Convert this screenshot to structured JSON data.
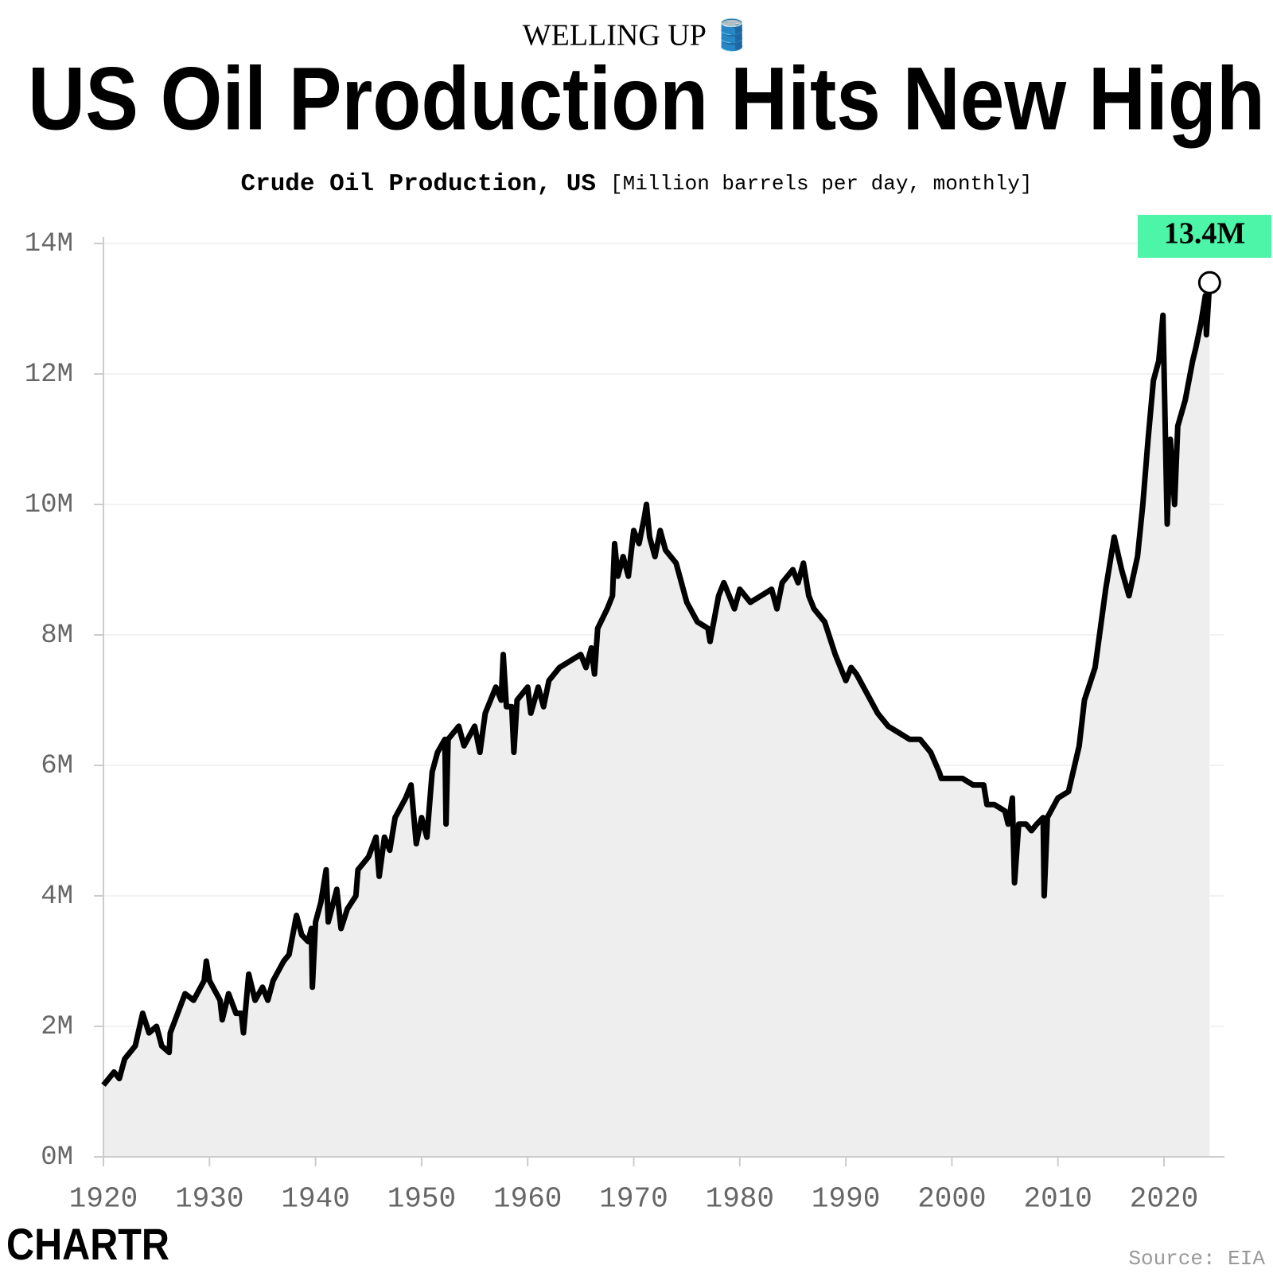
{
  "chart_data": {
    "type": "area",
    "kicker": "WELLING UP 🛢️",
    "title": "US Oil Production Hits New High",
    "subtitle": "Crude Oil Production, US",
    "unit_note": "[Million barrels per day, monthly]",
    "source": "Source: EIA",
    "brand": "CHARTR",
    "end_label": "13.4M",
    "color": "#000000",
    "fill": "#eeeeee",
    "label_color": "#4cf5a8",
    "x": [
      1920,
      1921,
      1921.5,
      1922,
      1923,
      1923.7,
      1924.3,
      1925,
      1925.5,
      1926.2,
      1926.3,
      1927,
      1927.7,
      1928.5,
      1929.5,
      1929.7,
      1930,
      1931,
      1931.2,
      1931.8,
      1932.5,
      1933,
      1933.2,
      1933.7,
      1934.3,
      1935,
      1935.5,
      1936,
      1937,
      1937.5,
      1938.2,
      1938.7,
      1939.3,
      1939.6,
      1939.7,
      1940,
      1940.5,
      1941,
      1941.2,
      1942,
      1942.4,
      1943,
      1943.8,
      1944,
      1945,
      1945.7,
      1946,
      1946.5,
      1947,
      1947.5,
      1948.5,
      1949,
      1949.5,
      1950,
      1950.5,
      1951,
      1951.5,
      1952.2,
      1952.3,
      1952.5,
      1953.5,
      1954,
      1955,
      1955.5,
      1956,
      1957,
      1957.5,
      1957.7,
      1958,
      1958.5,
      1958.7,
      1959,
      1960,
      1960.3,
      1961,
      1961.5,
      1962,
      1963,
      1964,
      1965,
      1965.5,
      1966,
      1966.3,
      1966.6,
      1967.5,
      1968,
      1968.2,
      1968.5,
      1969,
      1969.5,
      1970,
      1970.5,
      1971,
      1971.2,
      1971.5,
      1972,
      1972.5,
      1973,
      1974,
      1974.5,
      1975,
      1976,
      1977,
      1977.2,
      1978,
      1978.5,
      1979,
      1979.5,
      1980,
      1981,
      1982,
      1983,
      1983.5,
      1984,
      1985,
      1985.5,
      1986,
      1986.5,
      1987,
      1988,
      1989,
      1990,
      1990.5,
      1991,
      1992,
      1993,
      1994,
      1995,
      1996,
      1997,
      1998,
      1998.8,
      1999,
      2000,
      2001,
      2002,
      2003,
      2003.3,
      2004,
      2005,
      2005.3,
      2005.7,
      2005.9,
      2006.3,
      2007,
      2007.5,
      2008,
      2008.6,
      2008.7,
      2009,
      2010,
      2011,
      2012,
      2012.5,
      2013.5,
      2014.5,
      2015.3,
      2016,
      2016.7,
      2017.5,
      2018,
      2018.5,
      2019,
      2019.5,
      2019.9,
      2020.3,
      2020.6,
      2021,
      2021.3,
      2022,
      2022.7,
      2023,
      2023.5,
      2023.9,
      2024,
      2024.3
    ],
    "values": [
      1.1,
      1.3,
      1.2,
      1.5,
      1.7,
      2.2,
      1.9,
      2.0,
      1.7,
      1.6,
      1.9,
      2.2,
      2.5,
      2.4,
      2.7,
      3.0,
      2.7,
      2.4,
      2.1,
      2.5,
      2.2,
      2.2,
      1.9,
      2.8,
      2.4,
      2.6,
      2.4,
      2.7,
      3.0,
      3.1,
      3.7,
      3.4,
      3.3,
      3.5,
      2.6,
      3.6,
      3.9,
      4.4,
      3.6,
      4.1,
      3.5,
      3.8,
      4.0,
      4.4,
      4.6,
      4.9,
      4.3,
      4.9,
      4.7,
      5.2,
      5.5,
      5.7,
      4.8,
      5.2,
      4.9,
      5.9,
      6.2,
      6.4,
      5.1,
      6.4,
      6.6,
      6.3,
      6.6,
      6.2,
      6.8,
      7.2,
      7.0,
      7.7,
      6.9,
      6.9,
      6.2,
      7.0,
      7.2,
      6.8,
      7.2,
      6.9,
      7.3,
      7.5,
      7.6,
      7.7,
      7.5,
      7.8,
      7.4,
      8.1,
      8.4,
      8.6,
      9.4,
      8.9,
      9.2,
      8.9,
      9.6,
      9.4,
      9.8,
      10.0,
      9.5,
      9.2,
      9.6,
      9.3,
      9.1,
      8.8,
      8.5,
      8.2,
      8.1,
      7.9,
      8.6,
      8.8,
      8.6,
      8.4,
      8.7,
      8.5,
      8.6,
      8.7,
      8.4,
      8.8,
      9.0,
      8.8,
      9.1,
      8.6,
      8.4,
      8.2,
      7.7,
      7.3,
      7.5,
      7.4,
      7.1,
      6.8,
      6.6,
      6.5,
      6.4,
      6.4,
      6.2,
      5.9,
      5.8,
      5.8,
      5.8,
      5.7,
      5.7,
      5.4,
      5.4,
      5.3,
      5.1,
      5.5,
      4.2,
      5.1,
      5.1,
      5.0,
      5.1,
      5.2,
      4.0,
      5.2,
      5.5,
      5.6,
      6.3,
      7.0,
      7.5,
      8.7,
      9.5,
      9.0,
      8.6,
      9.2,
      10.0,
      11.0,
      11.9,
      12.2,
      12.9,
      9.7,
      11.0,
      10.0,
      11.2,
      11.6,
      12.2,
      12.4,
      12.8,
      13.2,
      12.6,
      13.4
    ],
    "xlim": [
      1920,
      2025.7
    ],
    "xticks": [
      1920,
      1930,
      1940,
      1950,
      1960,
      1970,
      1980,
      1990,
      2000,
      2010,
      2020
    ],
    "ylim": [
      0,
      14
    ],
    "yticks": [
      {
        "value": 0,
        "label": "0M"
      },
      {
        "value": 2,
        "label": "2M"
      },
      {
        "value": 4,
        "label": "4M"
      },
      {
        "value": 6,
        "label": "6M"
      },
      {
        "value": 8,
        "label": "8M"
      },
      {
        "value": 10,
        "label": "10M"
      },
      {
        "value": 12,
        "label": "12M"
      },
      {
        "value": 14,
        "label": "14M"
      }
    ],
    "grid": true
  }
}
